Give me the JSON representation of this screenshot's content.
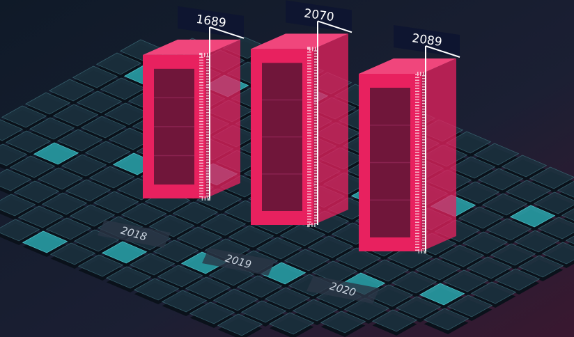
{
  "chart_data": {
    "type": "bar",
    "categories": [
      "2018",
      "2019",
      "2020"
    ],
    "values": [
      1689,
      2070,
      2089
    ],
    "color": "#e8215f"
  }
}
